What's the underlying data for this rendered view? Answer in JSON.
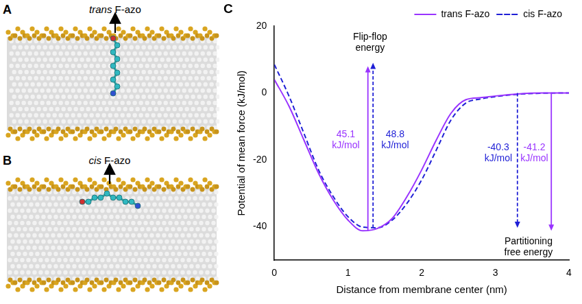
{
  "panels": [
    {
      "label": "A",
      "caption": "trans F-azo"
    },
    {
      "label": "B",
      "caption": "cis F-azo"
    }
  ],
  "chart_data": {
    "type": "line",
    "panel_label": "C",
    "x_label": "Distance from membrane center (nm)",
    "y_label": "Potential of mean force (kJ/mol)",
    "xlim": [
      0,
      4
    ],
    "xticks": [
      0,
      1,
      2,
      3,
      4
    ],
    "ylim": [
      -50,
      20
    ],
    "yticks": [
      -40,
      -20,
      0,
      20
    ],
    "grid": false,
    "legend": "top right",
    "x": [
      0,
      0.2,
      0.4,
      0.6,
      0.8,
      1.0,
      1.2,
      1.4,
      1.6,
      1.8,
      2.0,
      2.2,
      2.4,
      2.6,
      2.8,
      3.0,
      3.3,
      3.6,
      4.0
    ],
    "series": [
      {
        "name": "trans F-azo",
        "color": "#9933ff",
        "line_style": "solid",
        "values": [
          4,
          -4,
          -14,
          -24,
          -32,
          -38,
          -41.2,
          -40.5,
          -37.5,
          -31,
          -23,
          -14,
          -6,
          -2,
          -1.4,
          -0.9,
          -0.3,
          0,
          0
        ]
      },
      {
        "name": "cis F-azo",
        "color": "#1f1fd6",
        "line_style": "dashed",
        "values": [
          8.5,
          -1,
          -12,
          -23,
          -31,
          -37,
          -40.1,
          -40.3,
          -38,
          -33,
          -26,
          -17,
          -8,
          -3,
          -1.8,
          -1.1,
          -0.4,
          -0.1,
          0
        ]
      }
    ],
    "arrows": [
      {
        "x": 1.27,
        "from": -41.2,
        "to": 8,
        "color": "#9933ff",
        "line_style": "solid"
      },
      {
        "x": 1.34,
        "from": -40.3,
        "to": 9,
        "color": "#1f1fd6",
        "line_style": "dashed"
      },
      {
        "x": 3.3,
        "from": 0,
        "to": -40.3,
        "color": "#1f1fd6",
        "line_style": "dashed"
      },
      {
        "x": 3.76,
        "from": 0,
        "to": -41.2,
        "color": "#9933ff",
        "line_style": "solid"
      }
    ],
    "labels": [
      {
        "text": [
          "Flip-flop",
          "energy"
        ],
        "x": 1.3,
        "y": 15,
        "color": "#000000"
      },
      {
        "text": [
          "45.1",
          "kJ/mol"
        ],
        "x": 0.97,
        "y": -14,
        "color": "#9933ff"
      },
      {
        "text": [
          "48.8",
          "kJ/mol"
        ],
        "x": 1.64,
        "y": -14,
        "color": "#1f1fd6"
      },
      {
        "text": [
          "-40.3",
          "kJ/mol"
        ],
        "x": 3.04,
        "y": -18,
        "color": "#1f1fd6"
      },
      {
        "text": [
          "-41.2",
          "kJ/mol"
        ],
        "x": 3.53,
        "y": -18,
        "color": "#9933ff"
      },
      {
        "text": [
          "Partitioning",
          "free energy"
        ],
        "x": 3.45,
        "y": -46,
        "color": "#000000"
      }
    ]
  }
}
